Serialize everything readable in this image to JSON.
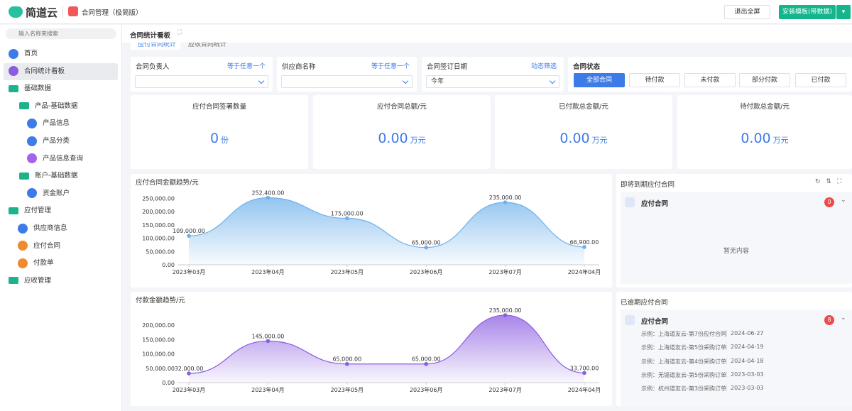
{
  "header": {
    "logo": "简道云",
    "app_name": "合同管理（极简版）",
    "buttons": [
      "退出全屏",
      "安装模板(带数据)"
    ]
  },
  "sidebar": {
    "search_placeholder": "输入名称来搜索",
    "items": [
      "首页",
      "合同统计看板",
      "基础数据",
      "产品-基础数据",
      "产品信息",
      "产品分类",
      "产品信息查询",
      "账户-基础数据",
      "资金账户",
      "应付管理",
      "供应商信息",
      "应付合同",
      "付款单",
      "应收管理"
    ]
  },
  "tab": "合同统计看板",
  "subtabs": [
    "应付合同统计",
    "应收合同统计"
  ],
  "filters": [
    {
      "label": "合同负责人",
      "mode": "等于任意一个"
    },
    {
      "label": "供应商名称",
      "mode": "等于任意一个"
    },
    {
      "label": "合同签订日期",
      "mode": "动态筛选",
      "value": "今年"
    }
  ],
  "status": {
    "label": "合同状态",
    "options": [
      "全部合同",
      "待付款",
      "未付款",
      "部分付款",
      "已付款"
    ]
  },
  "kpis": [
    {
      "title": "应付合同签署数量",
      "value": "0",
      "unit": "份"
    },
    {
      "title": "应付合同总额/元",
      "value": "0.00",
      "unit": "万元"
    },
    {
      "title": "已付款总金额/元",
      "value": "0.00",
      "unit": "万元"
    },
    {
      "title": "待付款总金额/元",
      "value": "0.00",
      "unit": "万元"
    }
  ],
  "chart_data": [
    {
      "type": "line",
      "title": "应付合同金额趋势/元",
      "categories": [
        "2023年03月",
        "2023年04月",
        "2023年05月",
        "2023年06月",
        "2023年07月",
        "2024年04月"
      ],
      "values": [
        109000,
        252400,
        175000,
        65000,
        235000,
        66900
      ],
      "value_labels": [
        "109,000.00",
        "252,400.00",
        "175,000.00",
        "65,000.00",
        "235,000.00",
        "66,900.00"
      ],
      "color": "#6fb1ea",
      "ylim": [
        0,
        270000
      ],
      "yticks": [
        {
          "value": 0,
          "label": "0.00"
        },
        {
          "value": 50000,
          "label": "50,000.00"
        },
        {
          "value": 100000,
          "label": "100,000.00"
        },
        {
          "value": 150000,
          "label": "150,000.00"
        },
        {
          "value": 200000,
          "label": "200,000.00"
        },
        {
          "value": 250000,
          "label": "250,000.00"
        }
      ],
      "grid": false
    },
    {
      "type": "line",
      "title": "付款金额趋势/元",
      "categories": [
        "2023年03月",
        "2023年04月",
        "2023年05月",
        "2023年06月",
        "2023年07月",
        "2024年04月"
      ],
      "values": [
        32000,
        145000,
        65000,
        65000,
        235000,
        33700
      ],
      "value_labels": [
        "32,000.00",
        "145,000.00",
        "65,000.00",
        "65,000.00",
        "235,000.00",
        "33,700.00"
      ],
      "color": "#8a5ce0",
      "ylim": [
        0,
        250000
      ],
      "yticks": [
        {
          "value": 0,
          "label": "0.00"
        },
        {
          "value": 50000,
          "label": "50,000.00"
        },
        {
          "value": 100000,
          "label": "100,000.00"
        },
        {
          "value": 150000,
          "label": "150,000.00"
        },
        {
          "value": 200000,
          "label": "200,000.00"
        }
      ],
      "grid": false
    }
  ],
  "panels": [
    {
      "title": "即将到期应付合同",
      "group": "应付合同",
      "badge": "0",
      "empty": "暂无内容"
    },
    {
      "title": "已逾期应付合同",
      "group": "应付合同",
      "badge": "8",
      "rows": [
        [
          "示例：上海道友云-第7份应付合同",
          "2024-06-27"
        ],
        [
          "示例：上海道友云-第5份采购订单",
          "2024-04-19"
        ],
        [
          "示例：上海道友云-第4份采购订单",
          "2024-04-18"
        ],
        [
          "示例：无锡道友云-第5份采购订单",
          "2023-03-03"
        ],
        [
          "示例：杭州道友云-第3份采购订单",
          "2023-03-03"
        ]
      ]
    }
  ]
}
